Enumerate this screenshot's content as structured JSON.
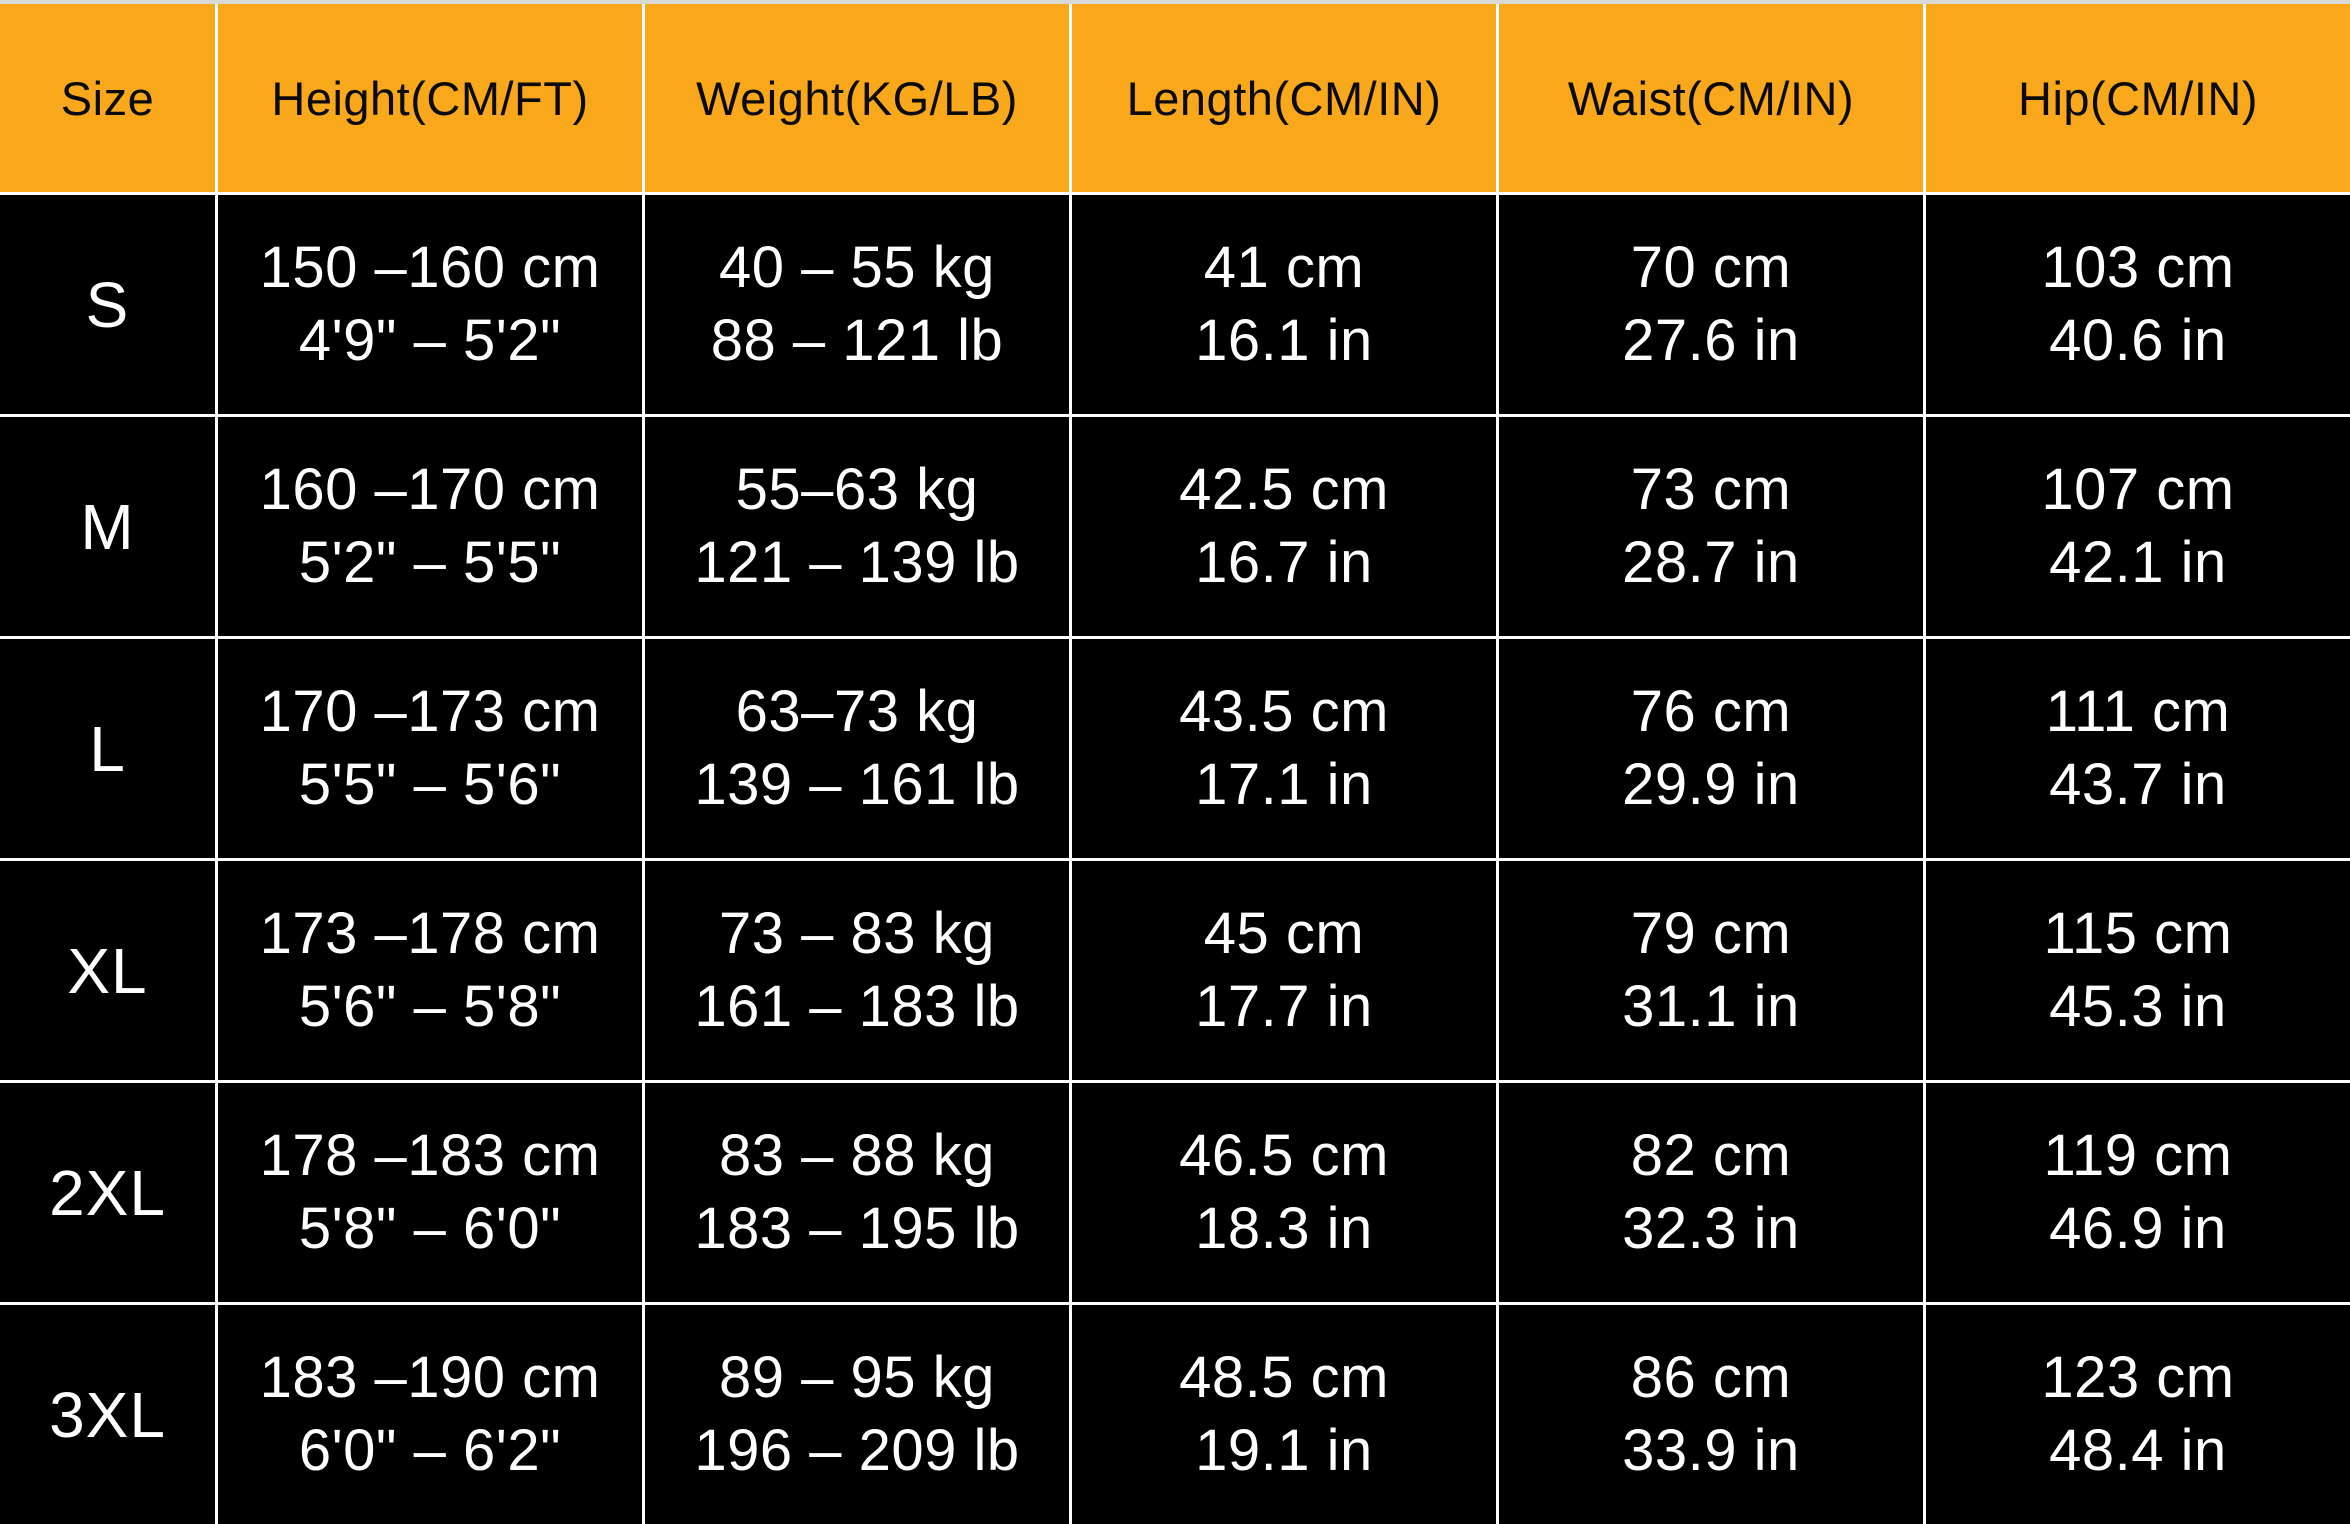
{
  "colors": {
    "header_bg": "#F9A71B",
    "header_text": "#0B0B0B",
    "body_bg": "#000000",
    "body_text": "#FFFFFF",
    "grid_line": "#FFFFFF",
    "top_strip": "#D9D9D9"
  },
  "chart_data": {
    "type": "table",
    "columns": [
      "Size",
      "Height(CM/FT)",
      "Weight(KG/LB)",
      "Length(CM/IN)",
      "Waist(CM/IN)",
      "Hip(CM/IN)"
    ],
    "rows": [
      {
        "size": "S",
        "height": [
          "150 –160 cm",
          "4'9\" – 5'2\""
        ],
        "weight": [
          "40 – 55 kg",
          "88 – 121 lb"
        ],
        "length": [
          "41 cm",
          "16.1 in"
        ],
        "waist": [
          "70 cm",
          "27.6 in"
        ],
        "hip": [
          "103 cm",
          "40.6 in"
        ]
      },
      {
        "size": "M",
        "height": [
          "160 –170 cm",
          "5'2\" – 5'5\""
        ],
        "weight": [
          "55–63 kg",
          "121 – 139 lb"
        ],
        "length": [
          "42.5 cm",
          "16.7 in"
        ],
        "waist": [
          "73 cm",
          "28.7 in"
        ],
        "hip": [
          "107 cm",
          "42.1 in"
        ]
      },
      {
        "size": "L",
        "height": [
          "170 –173 cm",
          "5'5\" – 5'6\""
        ],
        "weight": [
          "63–73 kg",
          "139 – 161 lb"
        ],
        "length": [
          "43.5 cm",
          "17.1 in"
        ],
        "waist": [
          "76 cm",
          "29.9 in"
        ],
        "hip": [
          "111 cm",
          "43.7 in"
        ]
      },
      {
        "size": "XL",
        "height": [
          "173 –178 cm",
          "5'6\" – 5'8\""
        ],
        "weight": [
          "73 – 83 kg",
          "161 – 183 lb"
        ],
        "length": [
          "45 cm",
          "17.7 in"
        ],
        "waist": [
          "79 cm",
          "31.1 in"
        ],
        "hip": [
          "115 cm",
          "45.3 in"
        ]
      },
      {
        "size": "2XL",
        "height": [
          "178 –183 cm",
          "5'8\" – 6'0\""
        ],
        "weight": [
          "83 – 88 kg",
          "183 – 195 lb"
        ],
        "length": [
          "46.5 cm",
          "18.3 in"
        ],
        "waist": [
          "82 cm",
          "32.3 in"
        ],
        "hip": [
          "119 cm",
          "46.9 in"
        ]
      },
      {
        "size": "3XL",
        "height": [
          "183 –190 cm",
          "6'0\" – 6'2\""
        ],
        "weight": [
          "89 – 95 kg",
          "196 – 209 lb"
        ],
        "length": [
          "48.5 cm",
          "19.1 in"
        ],
        "waist": [
          "86 cm",
          "33.9 in"
        ],
        "hip": [
          "123 cm",
          "48.4 in"
        ]
      }
    ]
  }
}
